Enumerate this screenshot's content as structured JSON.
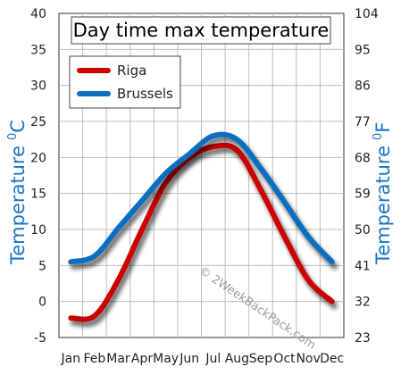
{
  "chart_data": {
    "type": "line",
    "title": "Day time max temperature",
    "categories": [
      "Jan",
      "Feb",
      "Mar",
      "Apr",
      "May",
      "Jun",
      "Jul",
      "Aug",
      "Sep",
      "Oct",
      "Nov",
      "Dec"
    ],
    "series": [
      {
        "name": "Riga",
        "color": "#cc0000",
        "values": [
          -2.3,
          -2.0,
          3.0,
          10.0,
          16.5,
          20.0,
          21.5,
          21.0,
          15.5,
          9.0,
          3.0,
          0.0
        ]
      },
      {
        "name": "Brussels",
        "color": "#0a6fc2",
        "values": [
          5.5,
          6.3,
          10.2,
          14.0,
          17.8,
          20.5,
          23.0,
          22.5,
          18.5,
          13.8,
          9.0,
          5.5
        ]
      }
    ],
    "ylabel": "Temperature",
    "ylabel_unit": "C",
    "y2label": "Temperature",
    "y2label_unit": "F",
    "ylim": [
      -5,
      40
    ],
    "yticks": [
      "-5",
      "0",
      "5",
      "10",
      "15",
      "20",
      "25",
      "30",
      "35",
      "40"
    ],
    "y2ticks": [
      "23",
      "32",
      "41",
      "50",
      "59",
      "68",
      "77",
      "86",
      "95",
      "104"
    ],
    "grid": true,
    "legend_position": "top-left",
    "watermark": "© 2WeekBackPack.com"
  }
}
